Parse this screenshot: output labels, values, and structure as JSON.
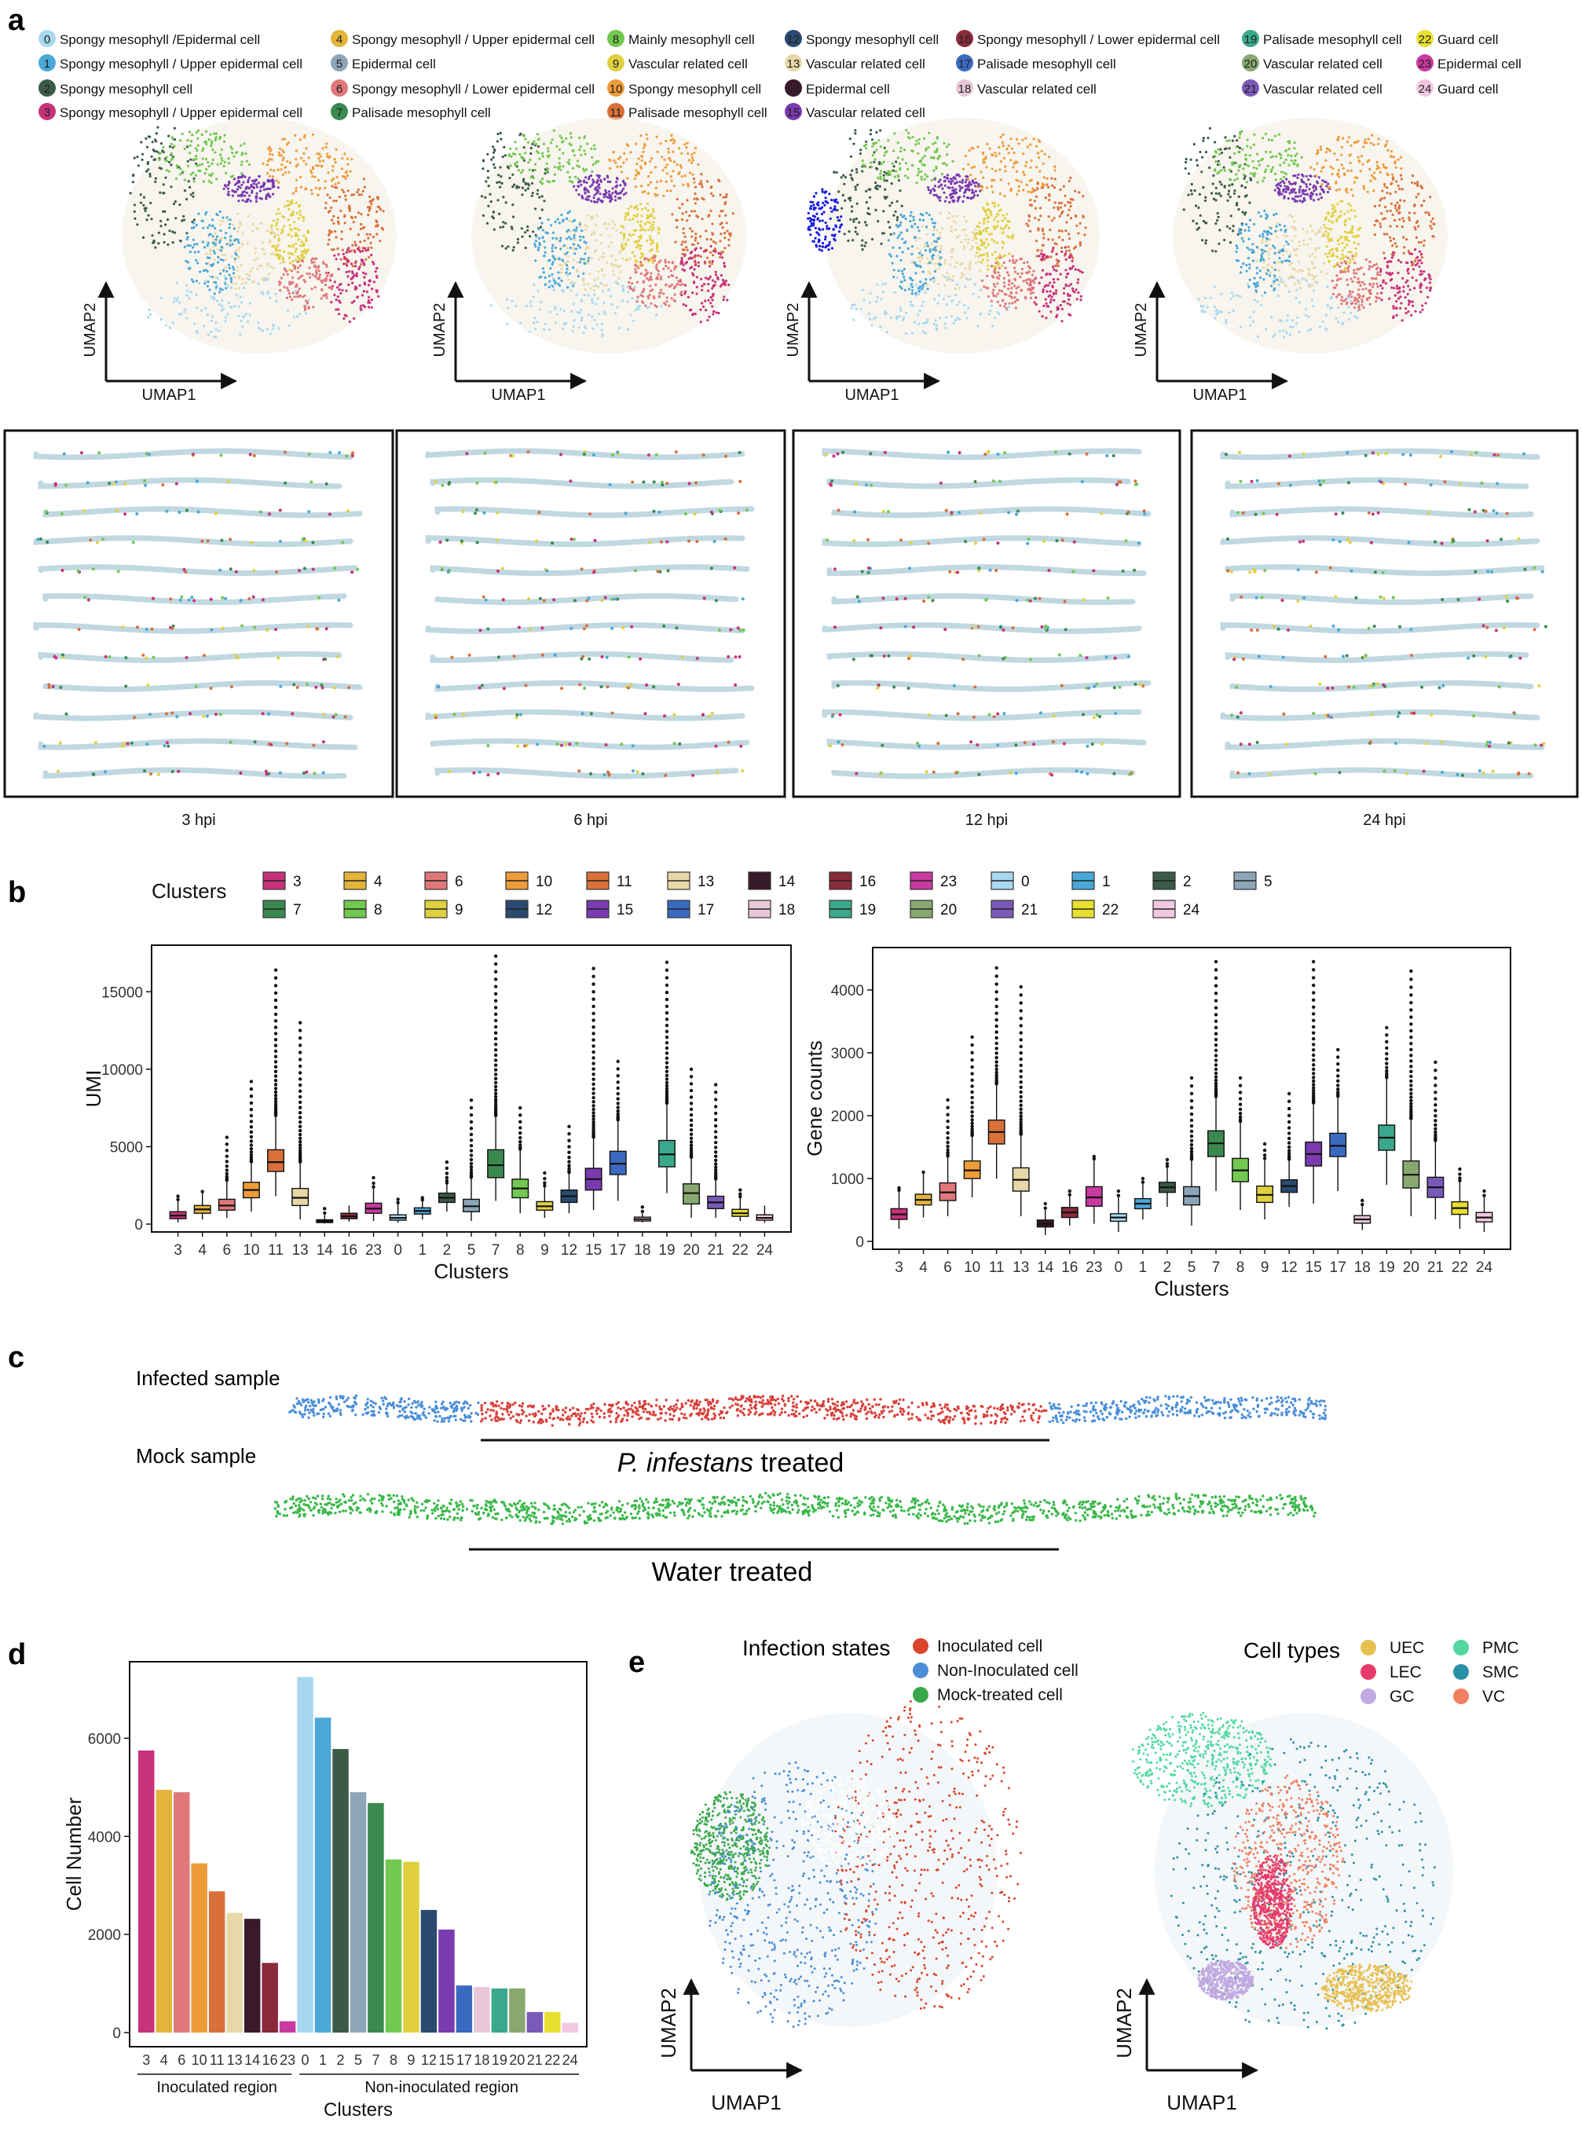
{
  "panel_labels": {
    "a": "a",
    "b": "b",
    "c": "c",
    "d": "d",
    "e": "e"
  },
  "panel_a": {
    "legend": [
      {
        "id": "0",
        "label": "Spongy mesophyll /Epidermal cell",
        "color": "#a8d8f0"
      },
      {
        "id": "1",
        "label": "Spongy mesophyll / Upper epidermal cell",
        "color": "#4aa8d8"
      },
      {
        "id": "2",
        "label": "Spongy mesophyll cell",
        "color": "#3c5a48"
      },
      {
        "id": "3",
        "label": "Spongy mesophyll / Upper epidermal cell",
        "color": "#c8327a"
      },
      {
        "id": "4",
        "label": "Spongy mesophyll / Upper epidermal cell",
        "color": "#e2b53a"
      },
      {
        "id": "5",
        "label": "Epidermal cell",
        "color": "#8ca6b8"
      },
      {
        "id": "6",
        "label": "Spongy mesophyll / Lower epidermal cell",
        "color": "#e0787a"
      },
      {
        "id": "7",
        "label": "Palisade mesophyll cell",
        "color": "#3a8a50"
      },
      {
        "id": "8",
        "label": "Mainly mesophyll cell",
        "color": "#72c850"
      },
      {
        "id": "9",
        "label": "Vascular related cell",
        "color": "#e0d040"
      },
      {
        "id": "10",
        "label": "Spongy mesophyll cell",
        "color": "#ee9b3a"
      },
      {
        "id": "11",
        "label": "Palisade mesophyll cell",
        "color": "#d9703a"
      },
      {
        "id": "12",
        "label": "Spongy mesophyll cell",
        "color": "#2a4a70"
      },
      {
        "id": "13",
        "label": "Vascular related cell",
        "color": "#e8d8a8"
      },
      {
        "id": "14",
        "label": "Epidermal cell",
        "color": "#3a1a2a"
      },
      {
        "id": "15",
        "label": "Vascular related cell",
        "color": "#7a3ab0"
      },
      {
        "id": "16",
        "label": "Spongy mesophyll / Lower epidermal cell",
        "color": "#8a2a3a"
      },
      {
        "id": "17",
        "label": "Palisade mesophyll cell",
        "color": "#3a6ac0"
      },
      {
        "id": "18",
        "label": "Vascular related cell",
        "color": "#e8c8d8"
      },
      {
        "id": "19",
        "label": "Palisade mesophyll cell",
        "color": "#3aa88a"
      },
      {
        "id": "20",
        "label": "Vascular related cell",
        "color": "#88a870"
      },
      {
        "id": "21",
        "label": "Vascular related cell",
        "color": "#7a5ab8"
      },
      {
        "id": "22",
        "label": "Guard cell",
        "color": "#e8e030"
      },
      {
        "id": "23",
        "label": "Epidermal cell",
        "color": "#c83aa0"
      },
      {
        "id": "24",
        "label": "Guard cell",
        "color": "#f0c8e0"
      }
    ],
    "umap_xlabel": "UMAP1",
    "umap_ylabel": "UMAP2",
    "timepoints": [
      "3 hpi",
      "6 hpi",
      "12 hpi",
      "24 hpi"
    ]
  },
  "chart_data": [
    {
      "type": "box",
      "title": "",
      "legend_title": "Clusters",
      "xlabel": "Clusters",
      "ylabel": "UMI",
      "ylim": [
        0,
        17500
      ],
      "yticks": [
        0,
        5000,
        10000,
        15000
      ],
      "categories": [
        "3",
        "4",
        "6",
        "10",
        "11",
        "13",
        "14",
        "16",
        "23",
        "0",
        "1",
        "2",
        "5",
        "7",
        "8",
        "9",
        "12",
        "15",
        "17",
        "18",
        "19",
        "20",
        "21",
        "22",
        "24"
      ],
      "colors": [
        "#c8327a",
        "#e2b53a",
        "#e0787a",
        "#ee9b3a",
        "#d9703a",
        "#e8d8a8",
        "#3a1a2a",
        "#8a2a3a",
        "#c83aa0",
        "#a8d8f0",
        "#4aa8d8",
        "#3c5a48",
        "#8ca6b8",
        "#3a8a50",
        "#72c850",
        "#e0d040",
        "#2a4a70",
        "#7a3ab0",
        "#3a6ac0",
        "#e8c8d8",
        "#3aa88a",
        "#88a870",
        "#7a5ab8",
        "#e8e030",
        "#f0c8e0"
      ],
      "q1": [
        350,
        700,
        900,
        1700,
        3400,
        1200,
        100,
        350,
        700,
        250,
        650,
        1400,
        800,
        3000,
        1700,
        900,
        1400,
        2200,
        3200,
        200,
        3700,
        1300,
        1000,
        500,
        250
      ],
      "median": [
        550,
        950,
        1200,
        2200,
        4000,
        1700,
        180,
        500,
        1000,
        400,
        850,
        1700,
        1150,
        3800,
        2300,
        1150,
        1800,
        2900,
        3900,
        320,
        4500,
        2000,
        1400,
        700,
        400
      ],
      "q3": [
        800,
        1200,
        1600,
        2700,
        4800,
        2300,
        280,
        700,
        1350,
        600,
        1050,
        2000,
        1600,
        4800,
        2900,
        1450,
        2200,
        3600,
        4700,
        450,
        5400,
        2600,
        1800,
        950,
        600
      ],
      "wmin": [
        100,
        300,
        400,
        800,
        1800,
        300,
        40,
        150,
        200,
        80,
        300,
        800,
        200,
        1500,
        700,
        400,
        700,
        900,
        1500,
        100,
        2000,
        400,
        400,
        200,
        80
      ],
      "wmax": [
        1500,
        2000,
        2800,
        4000,
        7000,
        4000,
        600,
        1200,
        2300,
        1300,
        1500,
        2600,
        3000,
        7000,
        4800,
        2400,
        3300,
        5600,
        6700,
        700,
        7800,
        4300,
        2900,
        1700,
        1200
      ],
      "outlier_max": [
        1800,
        2100,
        5600,
        9200,
        16400,
        13000,
        1000,
        1200,
        3000,
        1600,
        1700,
        4000,
        8000,
        17300,
        7500,
        3300,
        6300,
        16500,
        10500,
        1100,
        16900,
        10000,
        9000,
        2200,
        1200
      ]
    },
    {
      "type": "box",
      "title": "",
      "xlabel": "Clusters",
      "ylabel": "Gene counts",
      "ylim": [
        0,
        4550
      ],
      "yticks": [
        0,
        1000,
        2000,
        3000,
        4000
      ],
      "categories": [
        "3",
        "4",
        "6",
        "10",
        "11",
        "13",
        "14",
        "16",
        "23",
        "0",
        "1",
        "2",
        "5",
        "7",
        "8",
        "9",
        "12",
        "15",
        "17",
        "18",
        "19",
        "20",
        "21",
        "22",
        "24"
      ],
      "colors": [
        "#c8327a",
        "#e2b53a",
        "#e0787a",
        "#ee9b3a",
        "#d9703a",
        "#e8d8a8",
        "#3a1a2a",
        "#8a2a3a",
        "#c83aa0",
        "#a8d8f0",
        "#4aa8d8",
        "#3c5a48",
        "#8ca6b8",
        "#3a8a50",
        "#72c850",
        "#e0d040",
        "#2a4a70",
        "#7a3ab0",
        "#3a6ac0",
        "#e8c8d8",
        "#3aa88a",
        "#88a870",
        "#7a5ab8",
        "#e8e030",
        "#f0c8e0"
      ],
      "q1": [
        350,
        580,
        650,
        1000,
        1550,
        800,
        230,
        380,
        560,
        320,
        520,
        780,
        580,
        1350,
        950,
        620,
        780,
        1200,
        1350,
        290,
        1450,
        850,
        700,
        430,
        310
      ],
      "median": [
        430,
        660,
        780,
        1130,
        1740,
        980,
        280,
        460,
        700,
        380,
        600,
        860,
        720,
        1560,
        1130,
        740,
        880,
        1390,
        1520,
        350,
        1650,
        1060,
        860,
        530,
        380
      ],
      "q3": [
        520,
        750,
        930,
        1280,
        1930,
        1170,
        340,
        540,
        870,
        440,
        680,
        940,
        870,
        1760,
        1320,
        880,
        980,
        1580,
        1720,
        410,
        1850,
        1280,
        1020,
        630,
        460
      ],
      "wmin": [
        200,
        380,
        400,
        700,
        1000,
        400,
        100,
        250,
        280,
        150,
        350,
        550,
        250,
        800,
        500,
        350,
        550,
        600,
        800,
        180,
        900,
        400,
        350,
        200,
        150
      ],
      "wmax": [
        800,
        1080,
        1350,
        1680,
        2500,
        1700,
        500,
        720,
        1300,
        700,
        920,
        1180,
        1300,
        2300,
        1900,
        1300,
        1300,
        2200,
        2300,
        560,
        2600,
        1950,
        1600,
        950,
        700
      ],
      "outlier_max": [
        850,
        1100,
        2250,
        3250,
        4350,
        4050,
        600,
        800,
        1350,
        800,
        1000,
        1300,
        2600,
        4450,
        2600,
        1550,
        2350,
        4450,
        3050,
        650,
        3400,
        4300,
        2850,
        1150,
        800
      ]
    },
    {
      "type": "bar",
      "title": "",
      "xlabel": "Clusters",
      "ylabel": "Cell Number",
      "ylim": [
        0,
        7400
      ],
      "yticks": [
        0,
        2000,
        4000,
        6000
      ],
      "categories": [
        "3",
        "4",
        "6",
        "10",
        "11",
        "13",
        "14",
        "16",
        "23",
        "0",
        "1",
        "2",
        "5",
        "7",
        "8",
        "9",
        "12",
        "15",
        "17",
        "18",
        "19",
        "20",
        "21",
        "22",
        "24"
      ],
      "colors": [
        "#c8327a",
        "#e2b53a",
        "#e0787a",
        "#ee9b3a",
        "#d9703a",
        "#e8d8a8",
        "#3a1a2a",
        "#8a2a3a",
        "#c83aa0",
        "#a8d8f0",
        "#4aa8d8",
        "#3c5a48",
        "#8ca6b8",
        "#3a8a50",
        "#72c850",
        "#e0d040",
        "#2a4a70",
        "#7a3ab0",
        "#3a6ac0",
        "#e8c8d8",
        "#3aa88a",
        "#88a870",
        "#7a5ab8",
        "#e8e030",
        "#f0c8e0"
      ],
      "values": [
        5750,
        4950,
        4900,
        3450,
        2880,
        2440,
        2320,
        1420,
        230,
        7250,
        6420,
        5780,
        4900,
        4680,
        3530,
        3480,
        2500,
        2100,
        960,
        930,
        900,
        900,
        420,
        420,
        200
      ],
      "group_labels": [
        "Inoculated region",
        "Non-inoculated region"
      ]
    }
  ],
  "panel_c": {
    "infected_label": "Infected sample",
    "mock_label": "Mock sample",
    "treatment_italic": "P. infestans",
    "treatment_rest": " treated",
    "water_label": "Water treated"
  },
  "panel_e": {
    "infection_title": "Infection states",
    "infection_legend": [
      {
        "label": "Inoculated cell",
        "color": "#d9442a"
      },
      {
        "label": "Non-Inoculated cell",
        "color": "#4a8ed8"
      },
      {
        "label": "Mock-treated cell",
        "color": "#3aa84a"
      }
    ],
    "celltype_title": "Cell types",
    "celltype_legend": [
      {
        "label": "UEC",
        "color": "#e8c050"
      },
      {
        "label": "PMC",
        "color": "#50d8a0"
      },
      {
        "label": "LEC",
        "color": "#e83a6a"
      },
      {
        "label": "SMC",
        "color": "#2a90a8"
      },
      {
        "label": "GC",
        "color": "#c0a8e0"
      },
      {
        "label": "VC",
        "color": "#f08060"
      }
    ],
    "xlabel": "UMAP1",
    "ylabel": "UMAP2"
  }
}
